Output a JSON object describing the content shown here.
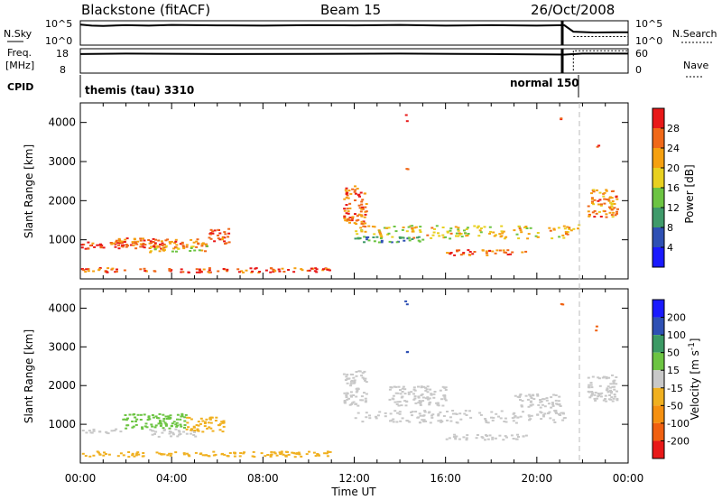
{
  "header": {
    "station": "Blackstone (fitACF)",
    "beam": "Beam 15",
    "date": "26/Oct/2008"
  },
  "noise_panel": {
    "left_label": "N.Sky",
    "right_label": "N.Search",
    "left_ticks": [
      "10^5",
      "10^0"
    ],
    "right_ticks": [
      "10^5",
      "10^0"
    ]
  },
  "freq_panel": {
    "left_label_top": "Freq.",
    "left_label_bottom": "[MHz]",
    "right_label": "Nave",
    "left_ticks": [
      "18",
      "8"
    ],
    "right_ticks": [
      "60",
      "0"
    ]
  },
  "cpid_panel": {
    "label": "CPID",
    "segments": [
      {
        "text": "themis (tau) 3310",
        "start": 0.0,
        "end": 21.25
      },
      {
        "text": "normal 150",
        "start": 21.25,
        "end": 24.0
      }
    ]
  },
  "axes": {
    "xlabel": "Time UT",
    "xticks": [
      "00:00",
      "04:00",
      "08:00",
      "12:00",
      "16:00",
      "20:00",
      "00:00"
    ],
    "ylabel": "Slant Range [km]",
    "yticks": [
      "1000",
      "2000",
      "3000",
      "4000"
    ]
  },
  "power_colorbar": {
    "label": "Power [dB]",
    "ticks": [
      "4",
      "8",
      "12",
      "16",
      "20",
      "24",
      "28"
    ],
    "colors": [
      "#1a1aff",
      "#2e50b4",
      "#3f9a6a",
      "#6cc442",
      "#e8d020",
      "#f5a010",
      "#f06818",
      "#e81818"
    ]
  },
  "velocity_colorbar": {
    "label": "Velocity [m s",
    "label_sup": "-1",
    "label_end": "]",
    "ticks": [
      "200",
      "100",
      "50",
      "15",
      "-15",
      "-50",
      "-100",
      "-200"
    ],
    "colors": [
      "#1a1aff",
      "#2e50b4",
      "#3c9a64",
      "#6cc442",
      "#c8c8c8",
      "#f0b020",
      "#f59010",
      "#f06010",
      "#e81818"
    ]
  },
  "chart_data": [
    {
      "type": "line",
      "title": "N.Sky / N.Search",
      "x_range": [
        0,
        24
      ],
      "series": [
        {
          "name": "N.Sky",
          "x": [
            0.0,
            0.5,
            1.0,
            2.0,
            3.0,
            4.0,
            6.0,
            8.0,
            10.0,
            12.0,
            14.0,
            16.0,
            18.0,
            20.0,
            21.2,
            21.6,
            22.5,
            23.5,
            24.0
          ],
          "y_frac": [
            0.84,
            0.8,
            0.79,
            0.82,
            0.8,
            0.83,
            0.81,
            0.8,
            0.82,
            0.81,
            0.83,
            0.8,
            0.82,
            0.8,
            0.82,
            0.55,
            0.52,
            0.53,
            0.53
          ]
        },
        {
          "name": "N.Search",
          "x": [
            21.6,
            24.0
          ],
          "y_frac": [
            0.35,
            0.35
          ]
        }
      ]
    },
    {
      "type": "line",
      "title": "Freq. / Nave",
      "x_range": [
        0,
        24
      ],
      "series": [
        {
          "name": "Freq.",
          "x": [
            0.0,
            2.0,
            6.0,
            10.0,
            14.0,
            18.0,
            21.2,
            22.0,
            24.0
          ],
          "y_frac": [
            0.78,
            0.8,
            0.78,
            0.79,
            0.8,
            0.78,
            0.76,
            0.8,
            0.8
          ]
        },
        {
          "name": "Nave",
          "x": [
            21.6,
            21.6,
            24.0
          ],
          "y_frac": [
            0.1,
            0.92,
            0.92
          ]
        }
      ]
    },
    {
      "type": "heatmap",
      "title": "Power",
      "x_range": [
        0,
        24
      ],
      "y_range": [
        0,
        4500
      ],
      "ylabel": "Slant Range [km]",
      "xlabel": "Time UT",
      "cells": [
        {
          "t0": 0.0,
          "t1": 3.6,
          "r0": 780,
          "r1": 960,
          "v": 0.9
        },
        {
          "t0": 1.3,
          "t1": 5.5,
          "r0": 820,
          "r1": 1060,
          "v": 0.8
        },
        {
          "t0": 3.0,
          "t1": 5.5,
          "r0": 700,
          "r1": 860,
          "v": 0.6
        },
        {
          "t0": 5.5,
          "t1": 6.5,
          "r0": 920,
          "r1": 1300,
          "v": 0.9
        },
        {
          "t0": 0.0,
          "t1": 11.0,
          "r0": 180,
          "r1": 300,
          "v": 0.85
        },
        {
          "t0": 11.5,
          "t1": 12.5,
          "r0": 1400,
          "r1": 2400,
          "v": 0.8
        },
        {
          "t0": 12.0,
          "t1": 21.2,
          "r0": 1050,
          "r1": 1380,
          "v": 0.6
        },
        {
          "t0": 12.0,
          "t1": 15.0,
          "r0": 950,
          "r1": 1100,
          "v": 0.3
        },
        {
          "t0": 16.0,
          "t1": 19.5,
          "r0": 620,
          "r1": 760,
          "v": 0.8
        },
        {
          "t0": 21.2,
          "t1": 21.8,
          "r0": 1150,
          "r1": 1400,
          "v": 0.7
        },
        {
          "t0": 22.2,
          "t1": 23.5,
          "r0": 1600,
          "r1": 2300,
          "v": 0.75
        },
        {
          "t0": 14.2,
          "t1": 14.3,
          "r0": 4050,
          "r1": 4250,
          "v": 0.9
        },
        {
          "t0": 14.2,
          "t1": 14.3,
          "r0": 2800,
          "r1": 2900,
          "v": 0.9
        },
        {
          "t0": 21.0,
          "t1": 21.1,
          "r0": 4100,
          "r1": 4150,
          "v": 0.9
        },
        {
          "t0": 22.5,
          "t1": 22.7,
          "r0": 3400,
          "r1": 3550,
          "v": 0.9
        }
      ]
    },
    {
      "type": "heatmap",
      "title": "Velocity",
      "x_range": [
        0,
        24
      ],
      "y_range": [
        0,
        4500
      ],
      "ylabel": "Slant Range [km]",
      "xlabel": "Time UT",
      "cells": [
        {
          "t0": 0.0,
          "t1": 1.8,
          "r0": 780,
          "r1": 900,
          "v": -5
        },
        {
          "t0": 1.8,
          "t1": 4.6,
          "r0": 900,
          "r1": 1300,
          "v": 30
        },
        {
          "t0": 3.0,
          "t1": 5.0,
          "r0": 700,
          "r1": 900,
          "v": -5
        },
        {
          "t0": 4.6,
          "t1": 6.3,
          "r0": 800,
          "r1": 1200,
          "v": -40
        },
        {
          "t0": 0.0,
          "t1": 11.0,
          "r0": 180,
          "r1": 320,
          "v": -40
        },
        {
          "t0": 11.5,
          "t1": 12.5,
          "r0": 1500,
          "r1": 2400,
          "v": 0
        },
        {
          "t0": 12.0,
          "t1": 21.2,
          "r0": 1050,
          "r1": 1380,
          "v": 0
        },
        {
          "t0": 16.0,
          "t1": 19.5,
          "r0": 620,
          "r1": 760,
          "v": 0
        },
        {
          "t0": 13.5,
          "t1": 16.0,
          "r0": 1500,
          "r1": 2000,
          "v": 0
        },
        {
          "t0": 19.0,
          "t1": 21.0,
          "r0": 1450,
          "r1": 1800,
          "v": 0
        },
        {
          "t0": 22.2,
          "t1": 23.5,
          "r0": 1600,
          "r1": 2300,
          "v": -5
        },
        {
          "t0": 14.2,
          "t1": 14.3,
          "r0": 4050,
          "r1": 4250,
          "v": 150
        },
        {
          "t0": 14.2,
          "t1": 14.3,
          "r0": 2800,
          "r1": 2900,
          "v": 150
        },
        {
          "t0": 21.0,
          "t1": 21.1,
          "r0": 4100,
          "r1": 4150,
          "v": -150
        },
        {
          "t0": 22.5,
          "t1": 22.7,
          "r0": 3400,
          "r1": 3550,
          "v": -150
        }
      ]
    }
  ]
}
